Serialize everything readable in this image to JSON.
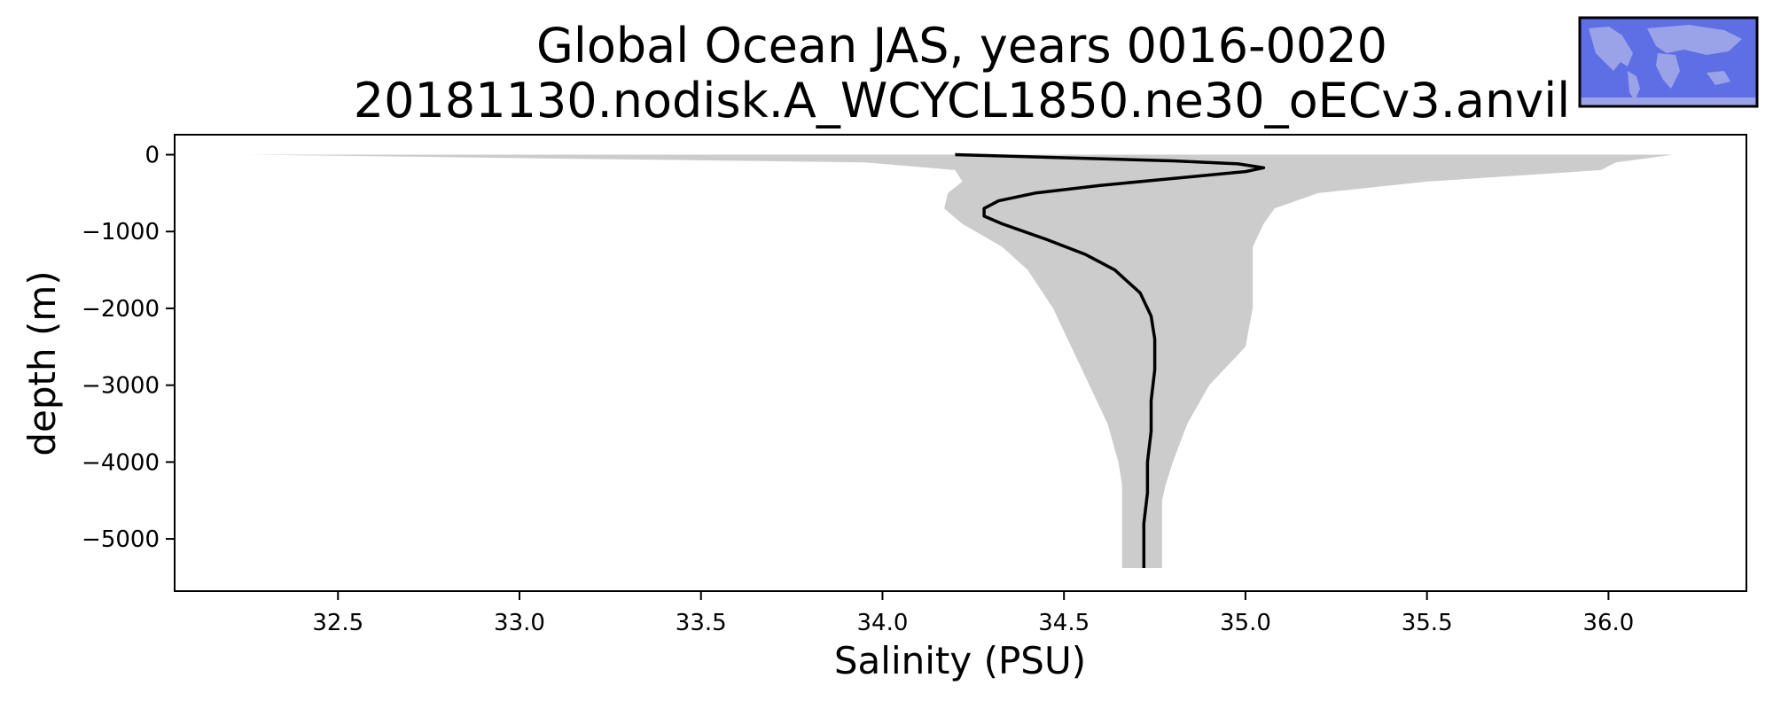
{
  "chart_data": {
    "type": "area",
    "title": [
      "Global Ocean JAS, years 0016-0020",
      "20181130.nodisk.A_WCYCL1850.ne30_oECv3.anvil"
    ],
    "xlabel": "Salinity (PSU)",
    "ylabel": "depth (m)",
    "xlim": [
      32.05,
      36.38
    ],
    "ylim": [
      -5680,
      260
    ],
    "xticks": [
      32.5,
      33.0,
      33.5,
      34.0,
      34.5,
      35.0,
      35.5,
      36.0
    ],
    "xtick_labels": [
      "32.5",
      "33.0",
      "33.5",
      "34.0",
      "34.5",
      "35.0",
      "35.5",
      "36.0"
    ],
    "yticks": [
      0,
      -1000,
      -2000,
      -3000,
      -4000,
      -5000
    ],
    "ytick_labels": [
      "0",
      "−1000",
      "−2000",
      "−3000",
      "−4000",
      "−5000"
    ],
    "grid": false,
    "series": [
      {
        "kind": "band",
        "color": "#cccccc",
        "depth": [
          0,
          -100,
          -200,
          -350,
          -500,
          -700,
          -900,
          -1200,
          -1500,
          -2000,
          -2500,
          -3000,
          -3500,
          -4000,
          -4300,
          -4500,
          -5000,
          -5380
        ],
        "min": [
          32.25,
          33.95,
          34.2,
          34.22,
          34.18,
          34.17,
          34.22,
          34.33,
          34.4,
          34.47,
          34.52,
          34.57,
          34.62,
          34.65,
          34.66,
          34.66,
          34.66,
          34.66
        ],
        "max": [
          36.18,
          36.02,
          35.98,
          35.5,
          35.2,
          35.08,
          35.05,
          35.02,
          35.02,
          35.02,
          35.0,
          34.9,
          34.84,
          34.8,
          34.78,
          34.77,
          34.77,
          34.77
        ]
      },
      {
        "kind": "line",
        "color": "#000000",
        "depth": [
          0,
          -40,
          -80,
          -120,
          -170,
          -220,
          -300,
          -400,
          -500,
          -600,
          -700,
          -800,
          -900,
          -1100,
          -1300,
          -1500,
          -1800,
          -2100,
          -2400,
          -2800,
          -3200,
          -3600,
          -4000,
          -4400,
          -4800,
          -5200,
          -5380
        ],
        "salinity": [
          34.2,
          34.5,
          34.8,
          34.98,
          35.05,
          35.0,
          34.82,
          34.6,
          34.42,
          34.32,
          34.28,
          34.28,
          34.33,
          34.45,
          34.56,
          34.64,
          34.71,
          34.74,
          34.75,
          34.75,
          34.74,
          34.74,
          34.73,
          34.73,
          34.72,
          34.72,
          34.72
        ]
      }
    ]
  },
  "inset_map": {
    "description_colors": {
      "ocean": "#5e6fe6",
      "land": "#9aa2e8",
      "frame": "#000000"
    }
  }
}
